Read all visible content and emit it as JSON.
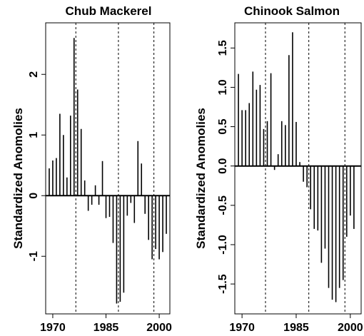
{
  "chart_data": [
    {
      "type": "bar",
      "title": "Chub Mackerel",
      "xlabel": "",
      "ylabel": "Standardized Anomolies",
      "xlim": [
        1968,
        2003
      ],
      "ylim": [
        -1.95,
        2.85
      ],
      "x_ticks": [
        1970,
        1985,
        2000
      ],
      "y_ticks": [
        -1,
        0,
        1,
        2
      ],
      "zero_line": true,
      "vlines": [
        1976.5,
        1988.5,
        1998.5
      ],
      "x": [
        1969,
        1970,
        1971,
        1972,
        1973,
        1974,
        1975,
        1976,
        1977,
        1978,
        1979,
        1980,
        1981,
        1982,
        1983,
        1984,
        1985,
        1986,
        1987,
        1988,
        1989,
        1990,
        1991,
        1992,
        1993,
        1994,
        1995,
        1996,
        1997,
        1998,
        1999,
        2000,
        2001,
        2002
      ],
      "values": [
        0.45,
        0.58,
        0.62,
        1.35,
        1.0,
        0.3,
        1.32,
        2.6,
        1.75,
        1.1,
        0.25,
        -0.25,
        -0.15,
        0.17,
        -0.15,
        0.57,
        -0.37,
        -0.35,
        -0.78,
        -1.78,
        -1.75,
        -1.6,
        -0.33,
        -0.12,
        -0.45,
        0.9,
        0.53,
        -0.3,
        -0.73,
        -1.05,
        -0.88,
        -1.05,
        -0.93,
        -0.63
      ]
    },
    {
      "type": "bar",
      "title": "Chinook Salmon",
      "xlabel": "",
      "ylabel": "Standardized Anomolies",
      "xlim": [
        1968,
        2003
      ],
      "ylim": [
        -1.88,
        1.82
      ],
      "x_ticks": [
        1970,
        1985,
        2000
      ],
      "y_ticks": [
        -1.5,
        -1.0,
        -0.5,
        0.0,
        0.5,
        1.0,
        1.5
      ],
      "zero_line": true,
      "vlines": [
        1976.5,
        1988.5,
        1998.5
      ],
      "x": [
        1969,
        1970,
        1971,
        1972,
        1973,
        1974,
        1975,
        1976,
        1977,
        1978,
        1979,
        1980,
        1981,
        1982,
        1983,
        1984,
        1985,
        1986,
        1987,
        1988,
        1989,
        1990,
        1991,
        1992,
        1993,
        1994,
        1995,
        1996,
        1997,
        1998,
        1999,
        2000,
        2001
      ],
      "values": [
        1.17,
        0.71,
        0.71,
        0.8,
        1.2,
        0.97,
        1.03,
        0.47,
        0.57,
        1.18,
        -0.05,
        0.15,
        0.57,
        0.52,
        1.41,
        1.7,
        0.56,
        0.05,
        -0.2,
        -0.27,
        -0.55,
        -0.8,
        -0.82,
        -1.23,
        -1.05,
        -1.55,
        -1.7,
        -1.73,
        -1.55,
        -1.45,
        -0.9,
        -0.63,
        -0.8
      ]
    }
  ]
}
